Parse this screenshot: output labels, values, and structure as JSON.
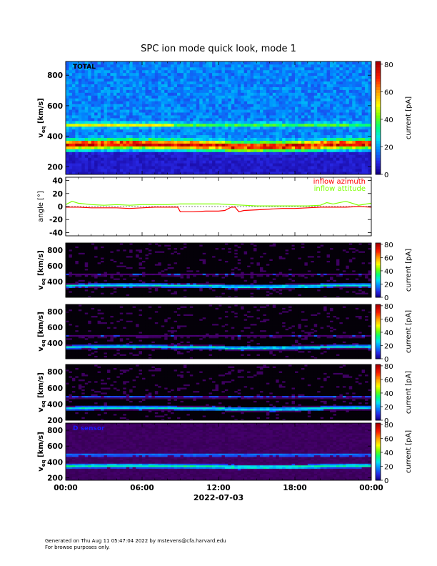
{
  "title": "SPC ion mode quick look, mode 1",
  "footer": {
    "line1": "Generated on Thu Aug 11 05:47:04 2022 by mstevens@cfa.harvard.edu",
    "line2": "For browse purposes only."
  },
  "chart_data": [
    {
      "type": "heatmap",
      "panel_label": "TOTAL",
      "ylabel": "v_eq [km/s]",
      "ylim": [
        150,
        890
      ],
      "yticks": [
        200,
        400,
        600,
        800
      ],
      "colorbar": {
        "label": "current [pA]",
        "range": [
          0,
          82
        ],
        "ticks": [
          0,
          20,
          40,
          60,
          80
        ]
      },
      "beam_band": {
        "center_kms": 345,
        "peak_current_pA": 70
      },
      "secondary_band": {
        "center_kms": 475,
        "current_pA": 35
      }
    },
    {
      "type": "line",
      "ylabel": "angle [°]",
      "ylim": [
        -45,
        45
      ],
      "yticks": [
        -40,
        -20,
        0,
        20,
        40
      ],
      "series": [
        {
          "name": "inflow azimuth",
          "color": "#ff0000",
          "x": [
            0,
            1,
            2,
            3,
            4,
            5,
            6,
            7,
            8,
            8.8,
            9,
            10,
            11,
            12,
            12.5,
            13,
            13.3,
            13.6,
            14,
            15,
            16,
            17,
            18,
            19,
            20,
            21,
            22,
            23,
            24
          ],
          "y": [
            -1,
            -1,
            -2,
            -2,
            -2,
            -3,
            -2,
            -1,
            -1,
            -1,
            -8,
            -8,
            -7,
            -7,
            -6,
            -1,
            -1,
            -8,
            -6,
            -5,
            -4,
            -3,
            -3,
            -2,
            -1,
            -1,
            -1,
            0,
            -1
          ]
        },
        {
          "name": "inflow attitude",
          "color": "#7fff00",
          "x": [
            0,
            0.5,
            1,
            2,
            3,
            4,
            5,
            6,
            7,
            8,
            9,
            10,
            11,
            12,
            13,
            14,
            15,
            16,
            17,
            18,
            19,
            20,
            20.5,
            21,
            22,
            22.5,
            23,
            24
          ],
          "y": [
            3,
            8,
            5,
            3,
            2,
            3,
            2,
            3,
            3,
            3,
            4,
            4,
            4,
            4,
            3,
            2,
            1,
            1,
            1,
            1,
            1,
            2,
            6,
            4,
            8,
            5,
            2,
            5
          ]
        }
      ]
    },
    {
      "type": "heatmap",
      "ylabel": "v_eq [km/s]",
      "ylim": [
        200,
        890
      ],
      "yticks": [
        400,
        600,
        800
      ],
      "colorbar": {
        "label": "current [pA]",
        "range": [
          0,
          82
        ],
        "ticks": [
          0,
          20,
          40,
          60,
          80
        ]
      },
      "beam_band": {
        "center_kms": 350,
        "peak_current_pA": 30
      },
      "secondary_band": {
        "center_kms": 490,
        "current_pA": 10
      }
    },
    {
      "type": "heatmap",
      "ylabel": "v_eq [km/s]",
      "ylim": [
        200,
        890
      ],
      "yticks": [
        400,
        600,
        800
      ],
      "colorbar": {
        "label": "current [pA]",
        "range": [
          0,
          82
        ],
        "ticks": [
          0,
          20,
          40,
          60,
          80
        ]
      },
      "beam_band": {
        "center_kms": 350,
        "peak_current_pA": 30
      },
      "secondary_band": {
        "center_kms": 490,
        "current_pA": 10
      }
    },
    {
      "type": "heatmap",
      "ylabel": "v_eq [km/s]",
      "ylim": [
        200,
        890
      ],
      "yticks": [
        200,
        400,
        600,
        800
      ],
      "colorbar": {
        "label": "current [pA]",
        "range": [
          0,
          82
        ],
        "ticks": [
          0,
          20,
          40,
          60,
          80
        ]
      },
      "beam_band": {
        "center_kms": 350,
        "peak_current_pA": 30
      },
      "secondary_band": {
        "center_kms": 490,
        "current_pA": 12
      }
    },
    {
      "type": "heatmap",
      "panel_label": "D sensor",
      "ylabel": "v_eq [km/s]",
      "ylim": [
        170,
        890
      ],
      "yticks": [
        200,
        400,
        600,
        800
      ],
      "colorbar": {
        "label": "current [pA]",
        "range": [
          0,
          82
        ],
        "ticks": [
          0,
          20,
          40,
          60,
          80
        ]
      },
      "beam_band": {
        "center_kms": 350,
        "peak_current_pA": 30
      },
      "secondary_band": {
        "center_kms": 490,
        "current_pA": 14
      }
    }
  ],
  "x_axis": {
    "tick_labels": [
      "00:00",
      "06:00",
      "12:00",
      "18:00",
      "00:00"
    ],
    "xlabel": "2022-07-03",
    "range_hours": [
      0,
      24
    ]
  }
}
